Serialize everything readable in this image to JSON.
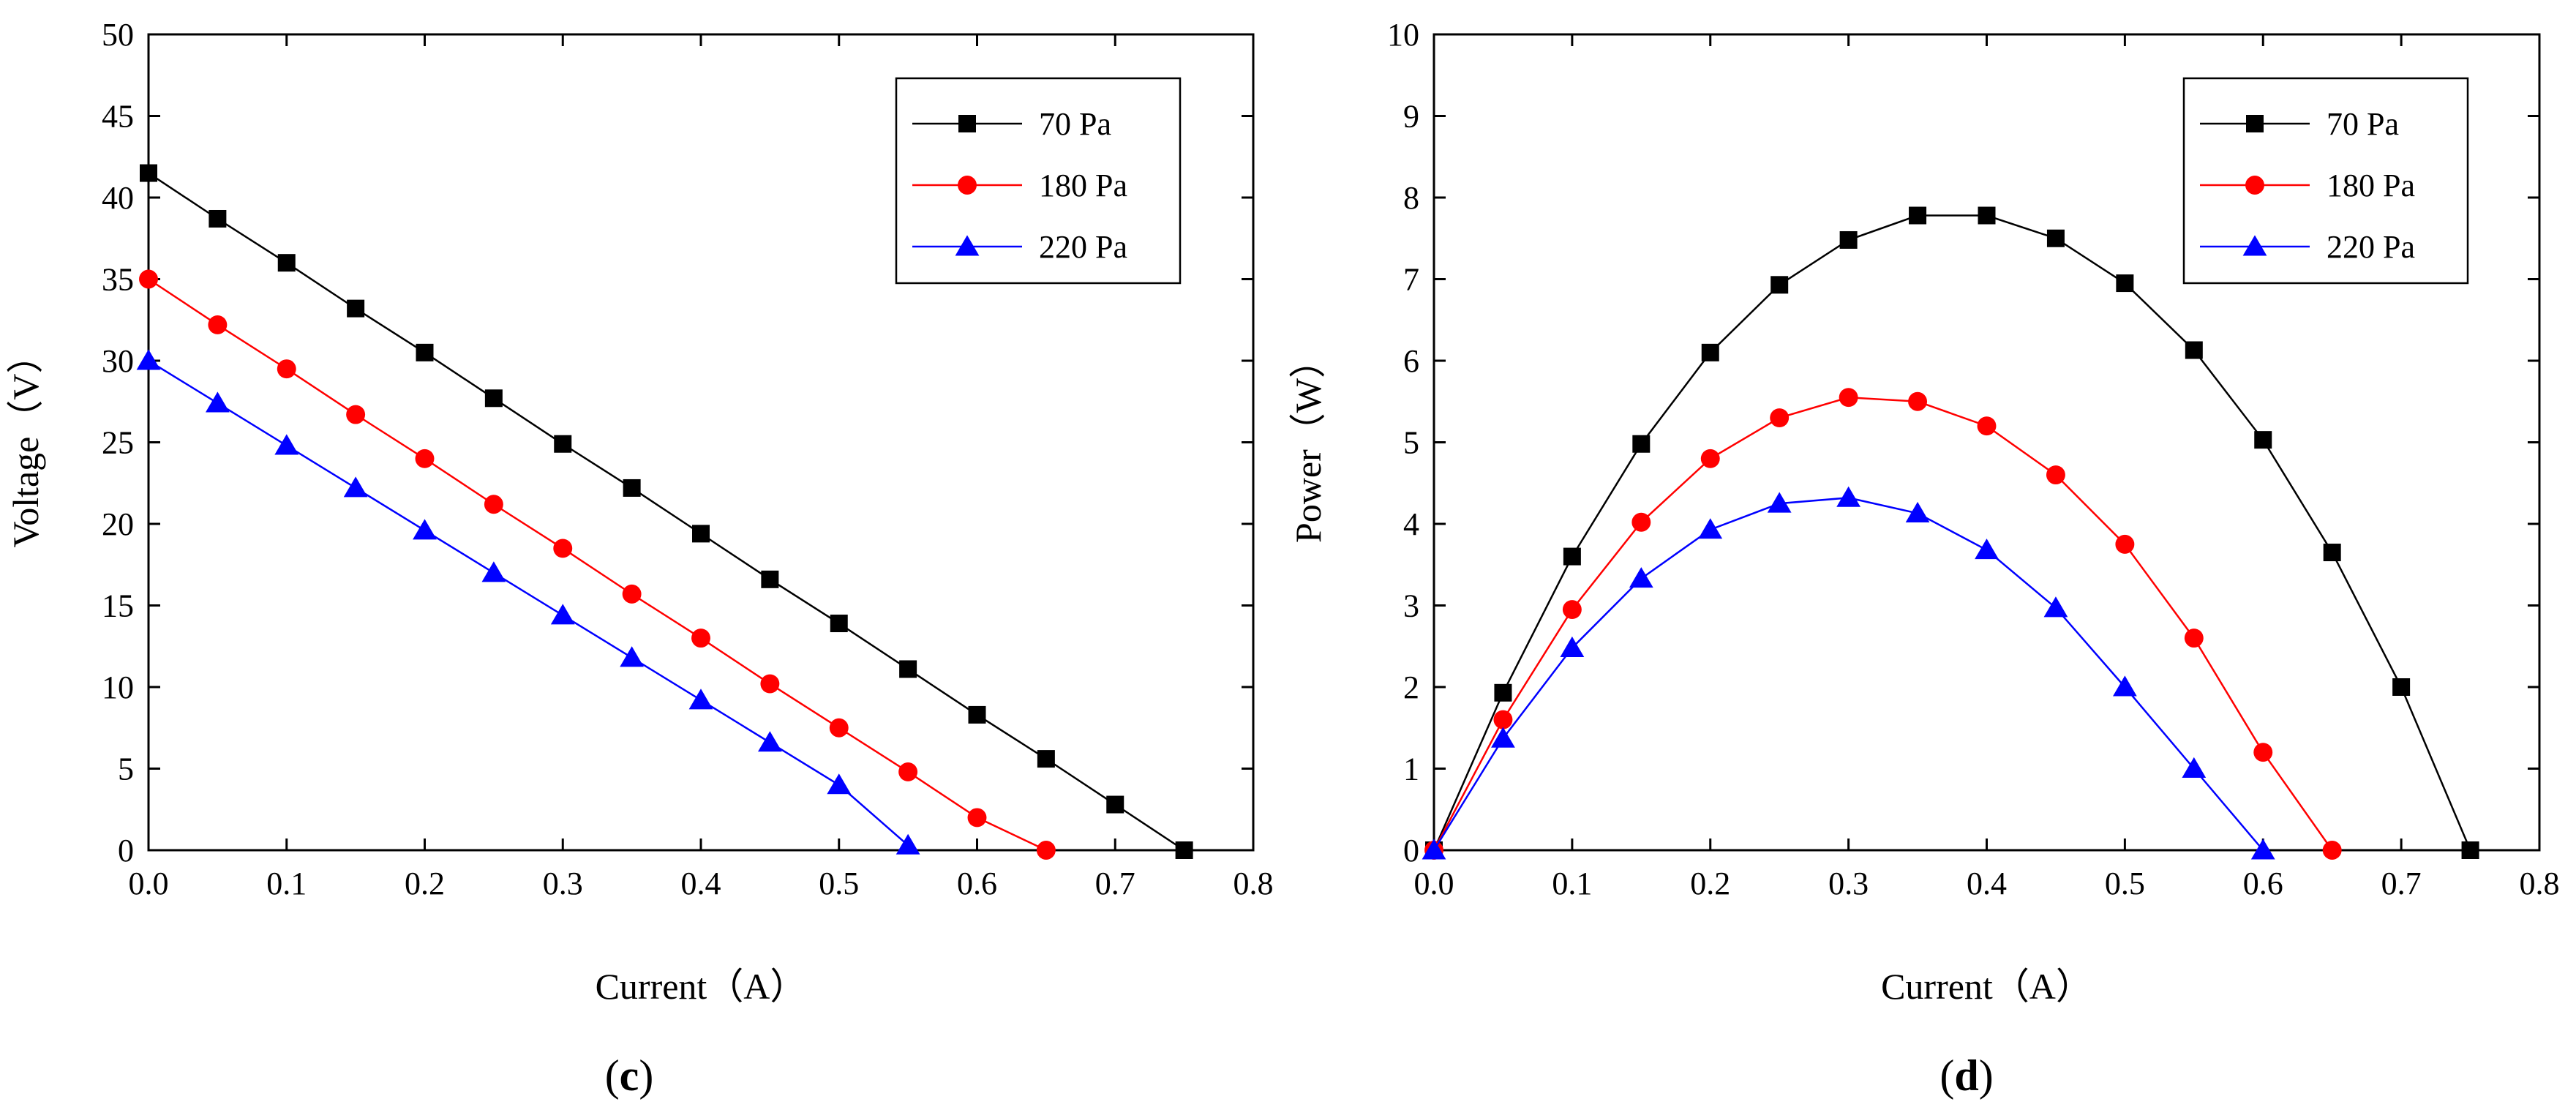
{
  "chart_data": [
    {
      "type": "line",
      "panel_label": "c",
      "xlabel": "Current（A）",
      "ylabel": "Voltage（V）",
      "xlim": [
        0,
        0.8
      ],
      "ylim": [
        0,
        50
      ],
      "xticks": [
        "0.0",
        "0.1",
        "0.2",
        "0.3",
        "0.4",
        "0.5",
        "0.6",
        "0.7",
        "0.8"
      ],
      "yticks": [
        "0",
        "5",
        "10",
        "15",
        "20",
        "25",
        "30",
        "35",
        "40",
        "45",
        "50"
      ],
      "legend_position": "top-right",
      "series": [
        {
          "name": "70 Pa",
          "color": "#000000",
          "marker": "square",
          "x": [
            0.0,
            0.05,
            0.1,
            0.15,
            0.2,
            0.25,
            0.3,
            0.35,
            0.4,
            0.45,
            0.5,
            0.55,
            0.6,
            0.65,
            0.7,
            0.75
          ],
          "y": [
            41.5,
            38.7,
            36.0,
            33.2,
            30.5,
            27.7,
            24.9,
            22.2,
            19.4,
            16.6,
            13.9,
            11.1,
            8.3,
            5.6,
            2.8,
            0.0
          ]
        },
        {
          "name": "180 Pa",
          "color": "#ff0000",
          "marker": "circle",
          "x": [
            0.0,
            0.05,
            0.1,
            0.15,
            0.2,
            0.25,
            0.3,
            0.35,
            0.4,
            0.45,
            0.5,
            0.55,
            0.6,
            0.65
          ],
          "y": [
            35.0,
            32.2,
            29.5,
            26.7,
            24.0,
            21.2,
            18.5,
            15.7,
            13.0,
            10.2,
            7.5,
            4.8,
            2.0,
            0.0
          ]
        },
        {
          "name": "220 Pa",
          "color": "#0000ff",
          "marker": "triangle",
          "x": [
            0.0,
            0.05,
            0.1,
            0.15,
            0.2,
            0.25,
            0.3,
            0.35,
            0.4,
            0.45,
            0.5,
            0.55
          ],
          "y": [
            30.0,
            27.4,
            24.8,
            22.2,
            19.6,
            17.0,
            14.4,
            11.8,
            9.2,
            6.6,
            4.0,
            0.3
          ]
        }
      ]
    },
    {
      "type": "line",
      "panel_label": "d",
      "xlabel": "Current（A）",
      "ylabel": "Power（W）",
      "xlim": [
        0,
        0.8
      ],
      "ylim": [
        0,
        10
      ],
      "xticks": [
        "0.0",
        "0.1",
        "0.2",
        "0.3",
        "0.4",
        "0.5",
        "0.6",
        "0.7",
        "0.8"
      ],
      "yticks": [
        "0",
        "1",
        "2",
        "3",
        "4",
        "5",
        "6",
        "7",
        "8",
        "9",
        "10"
      ],
      "legend_position": "top-right",
      "series": [
        {
          "name": "70 Pa",
          "color": "#000000",
          "marker": "square",
          "x": [
            0.0,
            0.05,
            0.1,
            0.15,
            0.2,
            0.25,
            0.3,
            0.35,
            0.4,
            0.45,
            0.5,
            0.55,
            0.6,
            0.65,
            0.7,
            0.75
          ],
          "y": [
            0.0,
            1.93,
            3.6,
            4.98,
            6.1,
            6.93,
            7.48,
            7.78,
            7.78,
            7.5,
            6.95,
            6.13,
            5.03,
            3.65,
            2.0,
            0.0
          ]
        },
        {
          "name": "180 Pa",
          "color": "#ff0000",
          "marker": "circle",
          "x": [
            0.0,
            0.05,
            0.1,
            0.15,
            0.2,
            0.25,
            0.3,
            0.35,
            0.4,
            0.45,
            0.5,
            0.55,
            0.6,
            0.65
          ],
          "y": [
            0.0,
            1.6,
            2.95,
            4.02,
            4.8,
            5.3,
            5.55,
            5.5,
            5.2,
            4.6,
            3.75,
            2.6,
            1.2,
            0.0
          ]
        },
        {
          "name": "220 Pa",
          "color": "#0000ff",
          "marker": "triangle",
          "x": [
            0.0,
            0.05,
            0.1,
            0.15,
            0.2,
            0.25,
            0.3,
            0.35,
            0.4,
            0.45,
            0.5,
            0.55,
            0.6
          ],
          "y": [
            0.0,
            1.37,
            2.48,
            3.33,
            3.93,
            4.25,
            4.32,
            4.13,
            3.68,
            2.97,
            2.0,
            1.0,
            0.0
          ]
        }
      ]
    }
  ]
}
